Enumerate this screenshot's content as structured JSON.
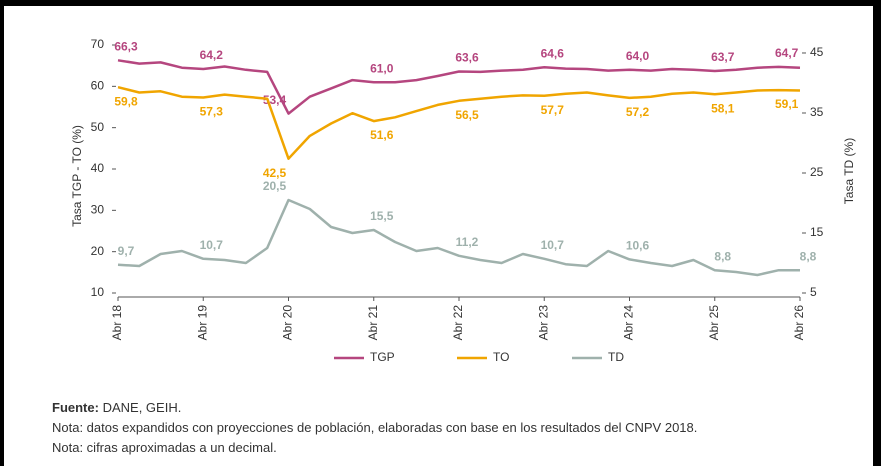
{
  "chart_data": {
    "type": "line",
    "y_label": "Tasa TGP - TO (%)",
    "y2_label": "Tasa TD (%)",
    "categories": [
      "Abr 18",
      null,
      null,
      null,
      "Abr 19",
      null,
      null,
      null,
      "Abr 20",
      null,
      null,
      null,
      "Abr 21",
      null,
      null,
      null,
      "Abr 22",
      null,
      null,
      null,
      "Abr 23",
      null,
      null,
      null,
      "Abr 24",
      null,
      null,
      null,
      "Abr 25",
      null,
      null,
      null,
      "Abr 26"
    ],
    "ylim": [
      10,
      70
    ],
    "yticks": [
      10,
      20,
      30,
      40,
      50,
      60,
      70
    ],
    "y2lim": [
      5,
      46.33
    ],
    "y2ticks": [
      5,
      15,
      25,
      35,
      45
    ],
    "series": [
      {
        "name": "TGP",
        "color": "#b5467f",
        "values": [
          66.3,
          65.5,
          65.8,
          64.5,
          64.2,
          64.8,
          64.0,
          63.5,
          53.4,
          57.5,
          59.5,
          61.5,
          61.0,
          61.0,
          61.5,
          62.5,
          63.6,
          63.5,
          63.8,
          64.0,
          64.6,
          64.3,
          64.2,
          63.8,
          64.0,
          63.8,
          64.2,
          64.0,
          63.7,
          64.0,
          64.5,
          64.7,
          64.5
        ],
        "value_labels": [
          "66,3",
          null,
          null,
          null,
          "64,2",
          null,
          null,
          null,
          "53,4",
          null,
          null,
          null,
          "61,0",
          null,
          null,
          null,
          "63,6",
          null,
          null,
          null,
          "64,6",
          null,
          null,
          null,
          "64,0",
          null,
          null,
          null,
          "63,7",
          null,
          null,
          "64,7",
          null
        ]
      },
      {
        "name": "TO",
        "color": "#f0a500",
        "values": [
          59.8,
          58.5,
          58.8,
          57.5,
          57.3,
          58.0,
          57.5,
          57.0,
          42.5,
          48.0,
          51.0,
          53.5,
          51.6,
          52.5,
          54.0,
          55.5,
          56.5,
          57.0,
          57.5,
          57.8,
          57.7,
          58.2,
          58.5,
          57.8,
          57.2,
          57.5,
          58.2,
          58.5,
          58.1,
          58.5,
          59.0,
          59.1,
          59.0
        ],
        "value_labels": [
          "59,8",
          null,
          null,
          null,
          "57,3",
          null,
          null,
          null,
          "42,5",
          null,
          null,
          null,
          "51,6",
          null,
          null,
          null,
          "56,5",
          null,
          null,
          null,
          "57,7",
          null,
          null,
          null,
          "57,2",
          null,
          null,
          null,
          "58,1",
          null,
          null,
          "59,1",
          null
        ]
      },
      {
        "name": "TD",
        "color": "#9fb1ac",
        "axis": "y2",
        "values": [
          9.7,
          9.5,
          11.5,
          12.0,
          10.7,
          10.5,
          10.0,
          12.5,
          20.5,
          19.0,
          16.0,
          15.0,
          15.5,
          13.5,
          12.0,
          12.5,
          11.2,
          10.5,
          10.0,
          11.5,
          10.7,
          9.8,
          9.5,
          12.0,
          10.6,
          10.0,
          9.5,
          10.5,
          8.8,
          8.5,
          8.0,
          8.8,
          8.8
        ],
        "value_labels": [
          "9,7",
          null,
          null,
          null,
          "10,7",
          null,
          null,
          null,
          "20,5",
          null,
          null,
          null,
          "15,5",
          null,
          null,
          null,
          "11,2",
          null,
          null,
          null,
          "10,7",
          null,
          null,
          null,
          "10,6",
          null,
          null,
          null,
          "8,8",
          null,
          null,
          null,
          "8,8"
        ]
      }
    ],
    "source_label": "Fuente:",
    "source": "DANE, GEIH.",
    "notes": [
      "Nota: datos expandidos con proyecciones de población, elaboradas con base en los resultados del CNPV 2018.",
      "Nota: cifras aproximadas a un decimal."
    ]
  }
}
